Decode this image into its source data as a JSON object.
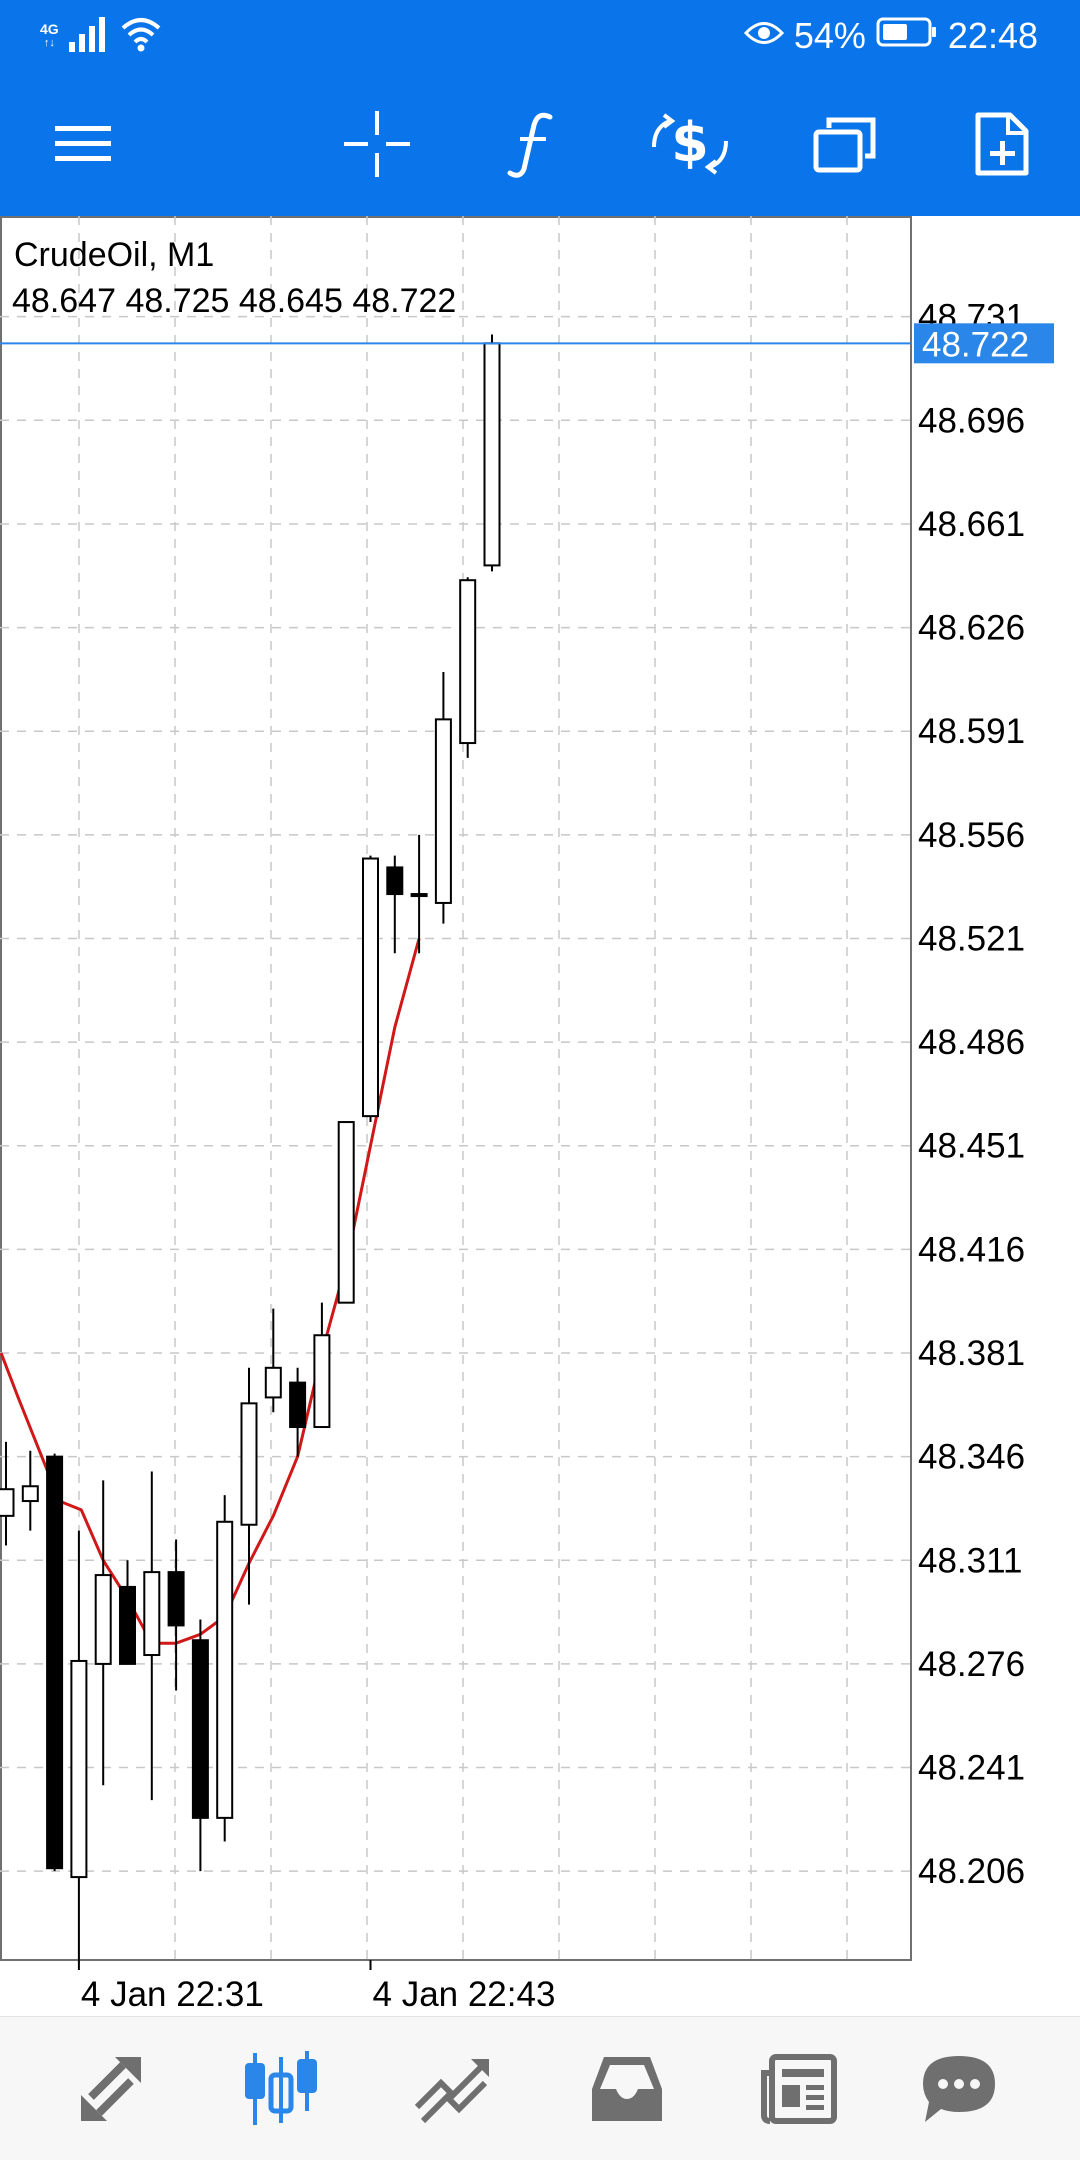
{
  "status_bar": {
    "network": "4G",
    "battery_percent": "54%",
    "time": "22:48",
    "icons": [
      "signal-icon",
      "wifi-icon",
      "eye-icon",
      "battery-icon"
    ]
  },
  "toolbar": {
    "icons": [
      "menu-icon",
      "crosshair-icon",
      "indicators-icon",
      "trade-icon",
      "windows-icon",
      "new-order-icon"
    ]
  },
  "bottom_nav": {
    "items": [
      "quotes-icon",
      "chart-icon",
      "trade-icon",
      "history-icon",
      "news-icon",
      "messages-icon"
    ],
    "active": "chart-icon",
    "active_color": "#2a86e8",
    "inactive_color": "#6f6f6f"
  },
  "chart_data": {
    "type": "candlestick",
    "symbol_label": "CrudeOil, M1",
    "ohlc_label": "48.647 48.725 48.645 48.722",
    "current_price": "48.722",
    "y_ticks": [
      "48.731",
      "48.696",
      "48.661",
      "48.626",
      "48.591",
      "48.556",
      "48.521",
      "48.486",
      "48.451",
      "48.416",
      "48.381",
      "48.346",
      "48.311",
      "48.276",
      "48.241",
      "48.206"
    ],
    "ylim": [
      48.176,
      48.765
    ],
    "x_tick_labels": [
      {
        "label": "4 Jan 22:31",
        "bar_index": 3
      },
      {
        "label": "4 Jan 22:43",
        "bar_index": 15
      }
    ],
    "grid": true,
    "colors": {
      "bull_fill": "#ffffff",
      "bear_fill": "#000000",
      "wick": "#000000",
      "ma_line": "#d01818",
      "current_price_line": "#2a86e8",
      "current_price_bg": "#2a86e8",
      "grid": "#c8c8c8"
    },
    "candles": [
      {
        "o": 48.326,
        "h": 48.351,
        "l": 48.316,
        "c": 48.335
      },
      {
        "o": 48.331,
        "h": 48.348,
        "l": 48.321,
        "c": 48.336
      },
      {
        "o": 48.346,
        "h": 48.347,
        "l": 48.206,
        "c": 48.207
      },
      {
        "o": 48.204,
        "h": 48.321,
        "l": 48.176,
        "c": 48.277
      },
      {
        "o": 48.276,
        "h": 48.338,
        "l": 48.235,
        "c": 48.306
      },
      {
        "o": 48.302,
        "h": 48.311,
        "l": 48.276,
        "c": 48.276
      },
      {
        "o": 48.279,
        "h": 48.341,
        "l": 48.23,
        "c": 48.307
      },
      {
        "o": 48.307,
        "h": 48.318,
        "l": 48.267,
        "c": 48.289
      },
      {
        "o": 48.284,
        "h": 48.291,
        "l": 48.206,
        "c": 48.224
      },
      {
        "o": 48.224,
        "h": 48.333,
        "l": 48.216,
        "c": 48.324
      },
      {
        "o": 48.323,
        "h": 48.376,
        "l": 48.296,
        "c": 48.364
      },
      {
        "o": 48.366,
        "h": 48.396,
        "l": 48.361,
        "c": 48.376
      },
      {
        "o": 48.371,
        "h": 48.376,
        "l": 48.346,
        "c": 48.356
      },
      {
        "o": 48.356,
        "h": 48.398,
        "l": 48.356,
        "c": 48.387
      },
      {
        "o": 48.398,
        "h": 48.459,
        "l": 48.398,
        "c": 48.459
      },
      {
        "o": 48.461,
        "h": 48.549,
        "l": 48.459,
        "c": 48.548
      },
      {
        "o": 48.545,
        "h": 48.549,
        "l": 48.516,
        "c": 48.536
      },
      {
        "o": 48.536,
        "h": 48.556,
        "l": 48.516,
        "c": 48.536
      },
      {
        "o": 48.533,
        "h": 48.611,
        "l": 48.526,
        "c": 48.595
      },
      {
        "o": 48.587,
        "h": 48.643,
        "l": 48.582,
        "c": 48.642
      },
      {
        "o": 48.647,
        "h": 48.725,
        "l": 48.645,
        "c": 48.722
      }
    ],
    "ma_line": {
      "name": "",
      "points": [
        {
          "bar_index": -0.2,
          "y": 48.381
        },
        {
          "bar_index": 0.5,
          "y": 48.366
        },
        {
          "bar_index": 2.2,
          "y": 48.331
        },
        {
          "bar_index": 3.1,
          "y": 48.328
        },
        {
          "bar_index": 4.0,
          "y": 48.311
        },
        {
          "bar_index": 5.0,
          "y": 48.298
        },
        {
          "bar_index": 6.0,
          "y": 48.283
        },
        {
          "bar_index": 7.0,
          "y": 48.283
        },
        {
          "bar_index": 8.0,
          "y": 48.286
        },
        {
          "bar_index": 9.0,
          "y": 48.292
        },
        {
          "bar_index": 10.0,
          "y": 48.31
        },
        {
          "bar_index": 11.0,
          "y": 48.326
        },
        {
          "bar_index": 12.0,
          "y": 48.346
        },
        {
          "bar_index": 13.0,
          "y": 48.381
        },
        {
          "bar_index": 14.0,
          "y": 48.411
        },
        {
          "bar_index": 15.0,
          "y": 48.451
        },
        {
          "bar_index": 16.0,
          "y": 48.491
        },
        {
          "bar_index": 17.0,
          "y": 48.521
        }
      ]
    }
  }
}
